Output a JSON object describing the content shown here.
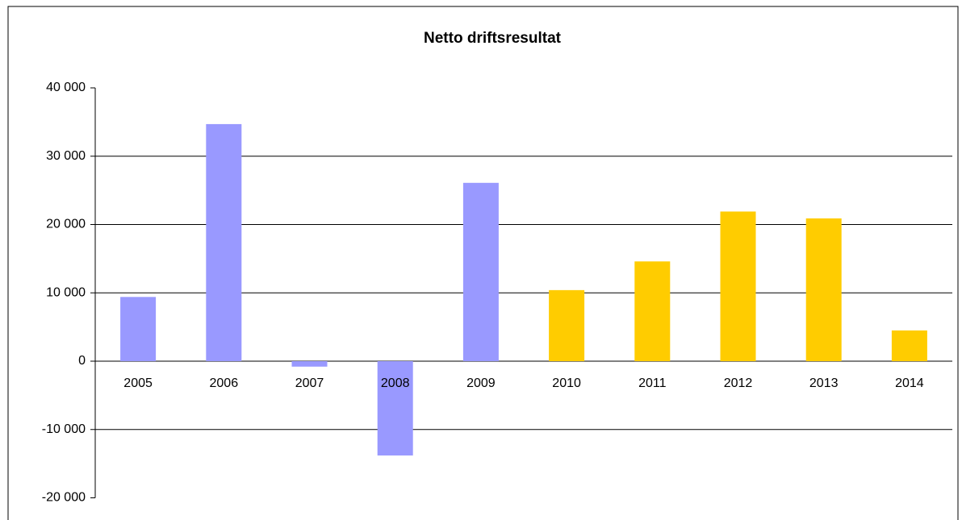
{
  "chart_data": {
    "type": "bar",
    "title": "Netto driftsresultat",
    "categories": [
      "2005",
      "2006",
      "2007",
      "2008",
      "2009",
      "2010",
      "2011",
      "2012",
      "2013",
      "2014"
    ],
    "values": [
      9400,
      34700,
      -800,
      -13800,
      26100,
      10400,
      14600,
      21900,
      20900,
      4500
    ],
    "colors": [
      "#9999ff",
      "#9999ff",
      "#9999ff",
      "#9999ff",
      "#9999ff",
      "#ffcc00",
      "#ffcc00",
      "#ffcc00",
      "#ffcc00",
      "#ffcc00"
    ],
    "ylim": [
      -20000,
      40000
    ],
    "yticks": [
      {
        "value": -20000,
        "label": "-20 000"
      },
      {
        "value": -10000,
        "label": "-10 000"
      },
      0,
      {
        "value": 10000,
        "label": "10 000"
      },
      {
        "value": 20000,
        "label": "20 000"
      },
      {
        "value": 30000,
        "label": "30 000"
      },
      {
        "value": 40000,
        "label": "40 000"
      }
    ],
    "grid": true
  }
}
